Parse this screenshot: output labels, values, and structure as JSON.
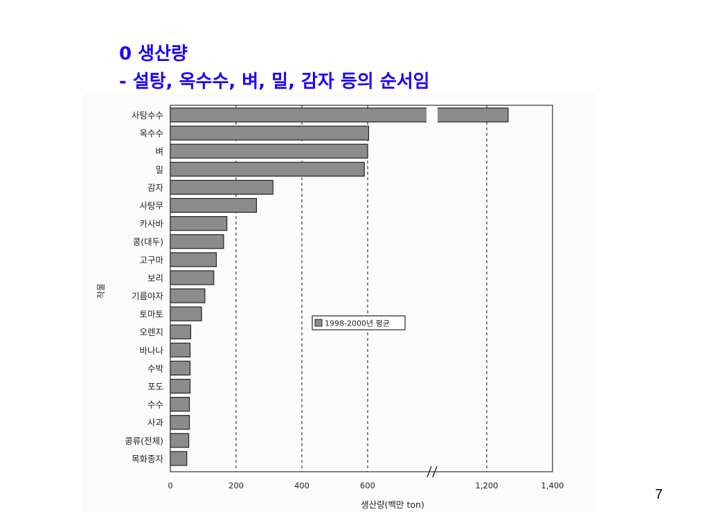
{
  "slide": {
    "title_line1": "0 생산량",
    "title_line2": "- 설탕, 옥수수, 벼, 밀, 감자 등의 순서임",
    "page_number": "7",
    "title_color": "#1a00ff"
  },
  "chart_data": {
    "type": "bar",
    "orientation": "horizontal",
    "categories": [
      "사탕수수",
      "옥수수",
      "벼",
      "밀",
      "감자",
      "사탕무",
      "카사바",
      "콩(대두)",
      "고구마",
      "보리",
      "기름야자",
      "토마토",
      "오렌지",
      "바나나",
      "수박",
      "포도",
      "수수",
      "사과",
      "콩류(전체)",
      "목화종자"
    ],
    "series": [
      {
        "name": "1998-2000년 평균",
        "values": [
          1265,
          605,
          600,
          590,
          312,
          262,
          172,
          162,
          140,
          132,
          105,
          95,
          62,
          60,
          60,
          60,
          58,
          58,
          56,
          50
        ]
      }
    ],
    "xlabel": "생산량(백만 ton)",
    "ylabel": "작물",
    "x_ticks": [
      "0",
      "200",
      "400",
      "600",
      "1,200",
      "1,400"
    ],
    "x_tick_values": [
      0,
      200,
      400,
      600,
      1200,
      1400
    ],
    "axis_break": true,
    "legend_position": "center-right",
    "bar_color": "#8c8c8c",
    "grid": "dashed vertical lines at 200, 400, 600, 1200"
  }
}
